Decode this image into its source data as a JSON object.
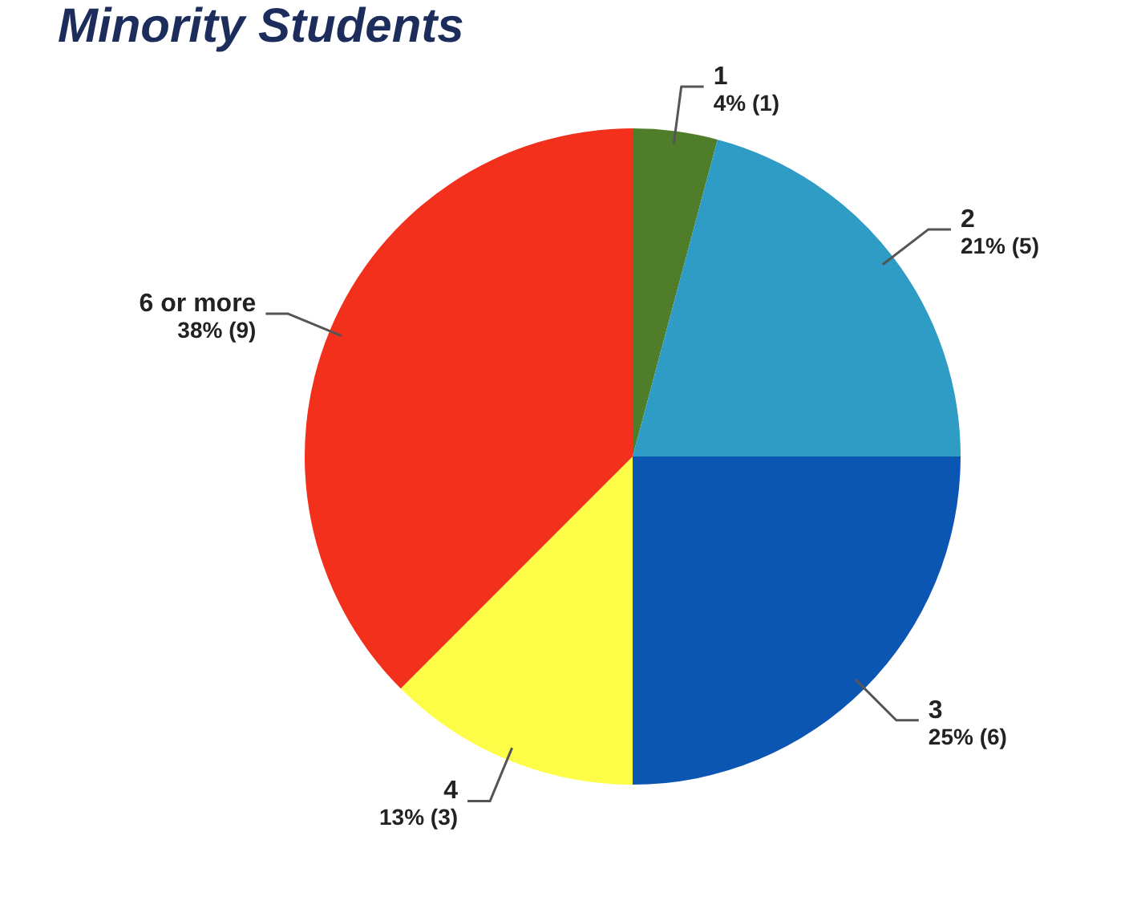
{
  "chart_data": {
    "type": "pie",
    "title": "Minority Students",
    "categories": [
      "1",
      "2",
      "3",
      "4",
      "6 or more"
    ],
    "values": [
      1,
      5,
      6,
      3,
      9
    ],
    "colors": [
      "#4f7d2a",
      "#2e9cc4",
      "#0b55b3",
      "#fdfd48",
      "#f2301c"
    ],
    "value_labels": [
      "4% (1)",
      "21% (5)",
      "25% (6)",
      "13% (3)",
      "38% (9)"
    ],
    "legend": false
  }
}
